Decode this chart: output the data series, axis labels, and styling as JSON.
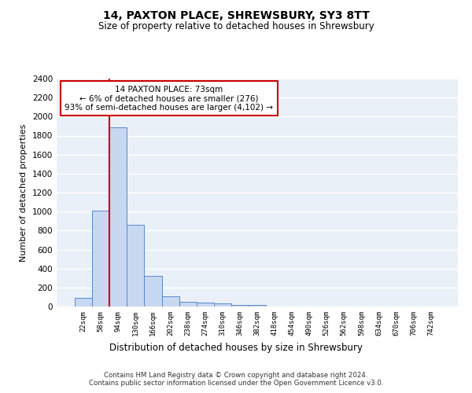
{
  "title1": "14, PAXTON PLACE, SHREWSBURY, SY3 8TT",
  "title2": "Size of property relative to detached houses in Shrewsbury",
  "xlabel": "Distribution of detached houses by size in Shrewsbury",
  "ylabel": "Number of detached properties",
  "bin_labels": [
    "22sqm",
    "58sqm",
    "94sqm",
    "130sqm",
    "166sqm",
    "202sqm",
    "238sqm",
    "274sqm",
    "310sqm",
    "346sqm",
    "382sqm",
    "418sqm",
    "454sqm",
    "490sqm",
    "526sqm",
    "562sqm",
    "598sqm",
    "634sqm",
    "670sqm",
    "706sqm",
    "742sqm"
  ],
  "bar_heights": [
    90,
    1010,
    1890,
    860,
    320,
    110,
    50,
    45,
    30,
    20,
    20,
    0,
    0,
    0,
    0,
    0,
    0,
    0,
    0,
    0,
    0
  ],
  "bar_color": "#c8d8f0",
  "bar_edge_color": "#5588cc",
  "vline_x": 1.5,
  "vline_color": "#cc0000",
  "annotation_text": "14 PAXTON PLACE: 73sqm\n← 6% of detached houses are smaller (276)\n93% of semi-detached houses are larger (4,102) →",
  "annotation_box_color": "#ffffff",
  "annotation_box_edge": "#cc0000",
  "bg_color": "#eaf0f8",
  "grid_color": "#ffffff",
  "footer1": "Contains HM Land Registry data © Crown copyright and database right 2024.",
  "footer2": "Contains public sector information licensed under the Open Government Licence v3.0.",
  "ylim": [
    0,
    2400
  ],
  "yticks": [
    0,
    200,
    400,
    600,
    800,
    1000,
    1200,
    1400,
    1600,
    1800,
    2000,
    2200,
    2400
  ]
}
